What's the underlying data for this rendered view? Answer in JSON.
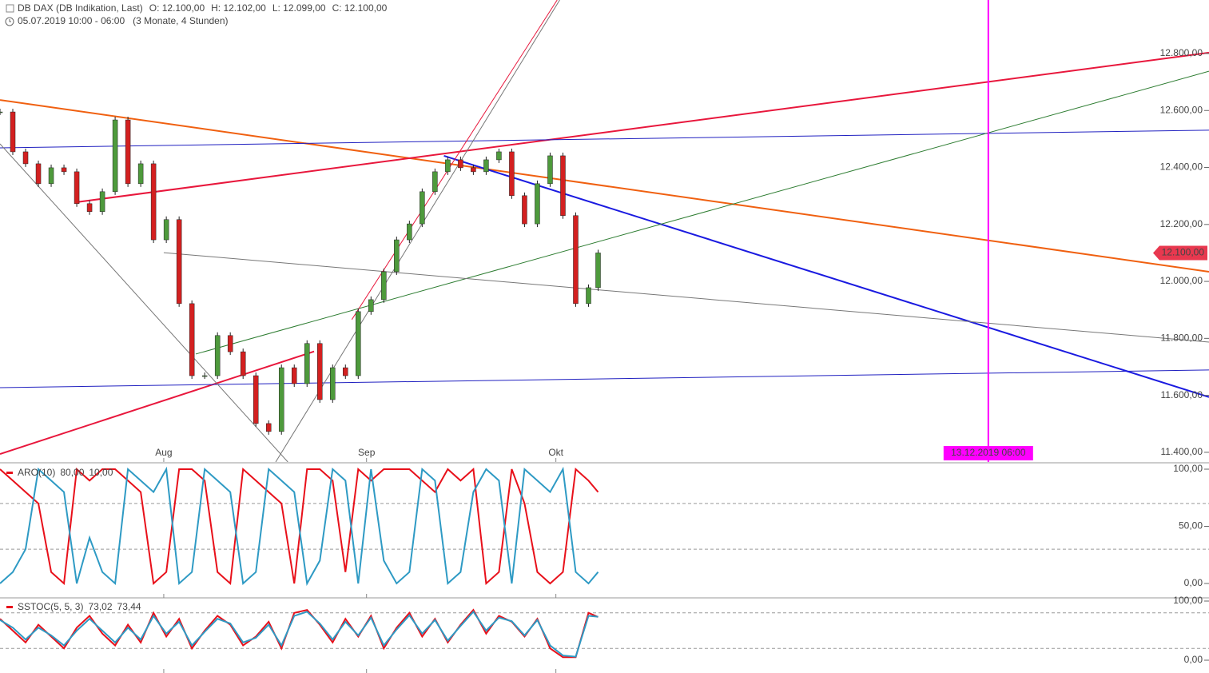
{
  "chart_data": [
    {
      "type": "candlestick",
      "title": "DB DAX (DB Indikation, Last)",
      "ohlc": [
        "O: 12.100,00",
        "H: 12.102,00",
        "L: 12.099,00",
        "C: 12.100,00"
      ],
      "subtitle": "05.07.2019 10:00 - 06:00   (3 Monate, 4 Stunden)",
      "x": [
        0,
        2,
        4,
        6,
        8,
        10,
        12,
        14,
        16,
        18,
        20,
        22,
        24,
        26,
        28,
        30,
        32,
        34,
        36,
        38,
        40,
        42,
        44,
        46,
        48,
        50,
        52,
        54,
        56,
        58,
        60,
        62,
        64,
        66,
        68,
        70,
        72,
        74,
        76,
        78,
        80,
        82,
        84,
        86,
        88,
        90,
        92,
        93.5
      ],
      "values": [
        12595,
        12455,
        12413,
        12343,
        12399,
        12385,
        12273,
        12245,
        12315,
        12567,
        12343,
        12413,
        12146,
        12217,
        11922,
        11669,
        11669,
        11810,
        11753,
        11669,
        11501,
        11473,
        11697,
        11641,
        11782,
        11585,
        11697,
        11669,
        11894,
        11936,
        12034,
        12146,
        12202,
        12315,
        12385,
        12427,
        12399,
        12385,
        12427,
        12455,
        12301,
        12202,
        12343,
        12441,
        12231,
        11922,
        11978,
        12100
      ],
      "up_color": "#4e9a3c",
      "down_color": "#d32020",
      "xlim": [
        0,
        189
      ],
      "ylim": [
        11366,
        12988
      ],
      "xticks": [
        {
          "value": 25.6,
          "label": "Aug"
        },
        {
          "value": 57.3,
          "label": "Sep"
        },
        {
          "value": 86.9,
          "label": "Okt"
        }
      ],
      "yticks": [
        {
          "value": 11400,
          "label": "11.400,00"
        },
        {
          "value": 11600,
          "label": "11.600,00"
        },
        {
          "value": 11800,
          "label": "11.800,00"
        },
        {
          "value": 12000,
          "label": "12.000,00"
        },
        {
          "value": 12200,
          "label": "12.200,00"
        },
        {
          "value": 12400,
          "label": "12.400,00"
        },
        {
          "value": 12600,
          "label": "12.600,00"
        },
        {
          "value": 12800,
          "label": "12.800,00"
        }
      ],
      "price": 12100,
      "price_label": "12.100,00",
      "price_color": "#e8384f",
      "marker": {
        "x": 154.5,
        "label": "13.12.2019 06:00",
        "color": "#ff00ff"
      },
      "lines": [
        {
          "color": "#f06010",
          "width": 2,
          "from": [
            0,
            12637
          ],
          "to": [
            189,
            12034
          ]
        },
        {
          "color": "#e8173c",
          "width": 2,
          "from": [
            11.9,
            12278
          ],
          "to": [
            189,
            12803
          ]
        },
        {
          "color": "#e8173c",
          "width": 2,
          "from": [
            0,
            11394
          ],
          "to": [
            49.1,
            11754
          ]
        },
        {
          "color": "#2020c0",
          "width": 1,
          "from": [
            0,
            12469
          ],
          "to": [
            189,
            12531
          ]
        },
        {
          "color": "#2020c0",
          "width": 1,
          "from": [
            0,
            11627
          ],
          "to": [
            189,
            11689
          ]
        },
        {
          "color": "#1a1ae0",
          "width": 2,
          "from": [
            69.4,
            12441
          ],
          "to": [
            189,
            11594
          ]
        },
        {
          "color": "#2e7d32",
          "width": 1,
          "from": [
            30.6,
            11745
          ],
          "to": [
            189,
            12738
          ]
        },
        {
          "color": "#777777",
          "width": 1,
          "from": [
            25.6,
            12101
          ],
          "to": [
            189,
            11787
          ]
        },
        {
          "color": "#777777",
          "width": 1,
          "from": [
            0,
            12483
          ],
          "to": [
            45,
            11366
          ]
        },
        {
          "color": "#777777",
          "width": 1,
          "from": [
            43.1,
            11366
          ],
          "to": [
            87.5,
            12988
          ]
        },
        {
          "color": "#e8173c",
          "width": 1,
          "from": [
            55,
            11866
          ],
          "to": [
            87.1,
            12988
          ]
        }
      ]
    },
    {
      "type": "line",
      "label": "ARO(10)",
      "x": [
        0,
        2,
        4,
        6,
        8,
        10,
        12,
        14,
        16,
        18,
        20,
        22,
        24,
        26,
        28,
        30,
        32,
        34,
        36,
        38,
        40,
        42,
        44,
        46,
        48,
        50,
        52,
        54,
        56,
        58,
        60,
        62,
        64,
        66,
        68,
        70,
        72,
        74,
        76,
        78,
        80,
        82,
        84,
        86,
        88,
        90,
        92,
        93.5
      ],
      "series": [
        {
          "color": "#e8101a",
          "last_value_label": "80,00",
          "values": [
            100,
            90,
            80,
            70,
            10,
            0,
            100,
            90,
            100,
            100,
            90,
            80,
            0,
            10,
            100,
            100,
            90,
            10,
            0,
            100,
            90,
            80,
            70,
            0,
            100,
            100,
            90,
            10,
            100,
            90,
            100,
            100,
            100,
            90,
            80,
            100,
            90,
            100,
            0,
            10,
            100,
            70,
            10,
            0,
            10,
            100,
            90,
            80
          ]
        },
        {
          "color": "#2e9ac4",
          "last_value_label": "10,00",
          "values": [
            0,
            10,
            30,
            100,
            90,
            80,
            0,
            40,
            10,
            0,
            100,
            90,
            80,
            100,
            0,
            10,
            100,
            90,
            80,
            0,
            10,
            100,
            90,
            80,
            0,
            20,
            100,
            90,
            0,
            100,
            20,
            0,
            10,
            100,
            90,
            0,
            10,
            80,
            100,
            90,
            0,
            100,
            90,
            80,
            100,
            10,
            0,
            10
          ]
        }
      ],
      "xlim": [
        0,
        189
      ],
      "ylim": [
        -12.6,
        104.9
      ],
      "yticks": [
        {
          "value": 0,
          "label": "0,00"
        },
        {
          "value": 50,
          "label": "50,00"
        },
        {
          "value": 100,
          "label": "100,00"
        }
      ],
      "levels": [
        30,
        70
      ]
    },
    {
      "type": "line",
      "label": "SSTOC(5, 5, 3)",
      "x": [
        0,
        2,
        4,
        6,
        8,
        10,
        12,
        14,
        16,
        18,
        20,
        22,
        24,
        26,
        28,
        30,
        32,
        34,
        36,
        38,
        40,
        42,
        44,
        46,
        48,
        50,
        52,
        54,
        56,
        58,
        60,
        62,
        64,
        66,
        68,
        70,
        72,
        74,
        76,
        78,
        80,
        82,
        84,
        86,
        88,
        90,
        92,
        93.5
      ],
      "series": [
        {
          "color": "#e8101a",
          "last_value_label": "73,02",
          "values": [
            70,
            50,
            30,
            60,
            40,
            20,
            55,
            75,
            45,
            25,
            60,
            30,
            80,
            40,
            70,
            20,
            50,
            75,
            60,
            25,
            40,
            65,
            20,
            80,
            85,
            60,
            30,
            70,
            40,
            75,
            20,
            55,
            80,
            40,
            70,
            30,
            60,
            85,
            45,
            75,
            65,
            40,
            70,
            20,
            5,
            5,
            80,
            73.02
          ]
        },
        {
          "color": "#2e9ac4",
          "last_value_label": "73,44",
          "values": [
            68,
            55,
            35,
            55,
            42,
            25,
            50,
            70,
            50,
            30,
            55,
            35,
            75,
            45,
            65,
            25,
            48,
            70,
            62,
            30,
            38,
            60,
            25,
            75,
            82,
            62,
            35,
            65,
            42,
            72,
            25,
            52,
            76,
            45,
            68,
            33,
            58,
            82,
            50,
            72,
            66,
            42,
            68,
            25,
            8,
            6,
            75,
            73.44
          ]
        }
      ],
      "xlim": [
        0,
        189
      ],
      "ylim": [
        -21.6,
        105.4
      ],
      "yticks": [
        {
          "value": 0,
          "label": "0,00"
        },
        {
          "value": 100,
          "label": "100,00"
        }
      ],
      "levels": [
        20,
        80
      ]
    }
  ]
}
